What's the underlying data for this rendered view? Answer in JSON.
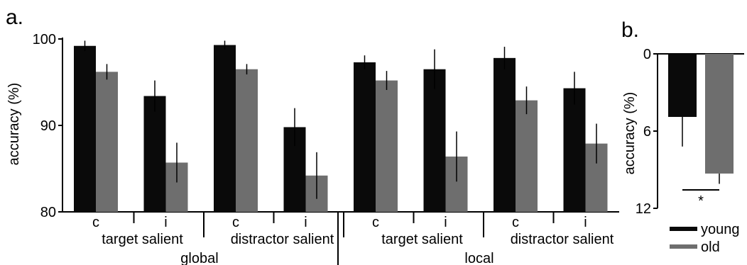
{
  "panels": {
    "a_label": "a.",
    "b_label": "b."
  },
  "colors": {
    "young": "#0a0a0a",
    "old": "#6e6e6e"
  },
  "legend": {
    "placement": "bottom-right",
    "young": "young",
    "old": "old"
  },
  "chart_data": [
    {
      "type": "bar",
      "panel": "a.",
      "ylabel": "accuracy (%)",
      "ylim": [
        80,
        100
      ],
      "yticks": [
        "80",
        "90",
        "100"
      ],
      "categories": [
        "c",
        "i",
        "c",
        "i",
        "c",
        "i",
        "c",
        "i"
      ],
      "condition_labels": [
        "target salient",
        "distractor salient",
        "target salient",
        "distractor salient"
      ],
      "group_labels": [
        "global",
        "local"
      ],
      "series": [
        {
          "name": "young",
          "values": [
            99.2,
            93.4,
            99.3,
            89.8,
            97.3,
            96.5,
            97.8,
            94.3
          ],
          "errors": [
            0.6,
            1.8,
            0.5,
            2.2,
            0.8,
            2.3,
            1.3,
            1.9
          ]
        },
        {
          "name": "old",
          "values": [
            96.2,
            85.7,
            96.5,
            84.2,
            95.2,
            86.4,
            92.9,
            87.9
          ],
          "errors": [
            0.9,
            2.3,
            0.6,
            2.7,
            1.1,
            2.9,
            1.6,
            2.3
          ]
        }
      ]
    },
    {
      "type": "bar",
      "panel": "b.",
      "ylabel": "accuracy (%)",
      "ylim": [
        0,
        12
      ],
      "yticks": [
        "0",
        "6",
        "12"
      ],
      "inverted": true,
      "series": [
        {
          "name": "young",
          "values": [
            4.9
          ],
          "errors": [
            2.3
          ]
        },
        {
          "name": "old",
          "values": [
            9.3
          ],
          "errors": [
            0.8
          ]
        }
      ],
      "annotation": "*"
    }
  ]
}
